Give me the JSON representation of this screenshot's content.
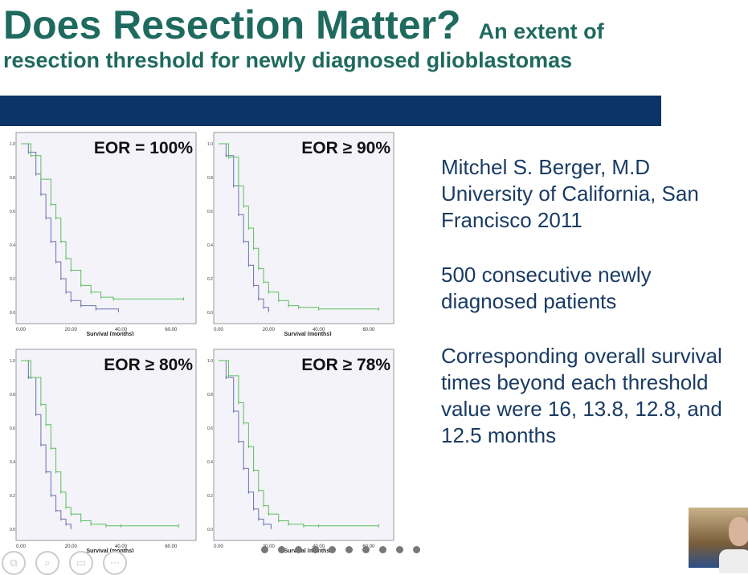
{
  "slide": {
    "title": "Does Resection Matter?",
    "subtitle_line1": "An extent of",
    "subtitle_line2": "resection threshold for newly diagnosed glioblastomas",
    "accent": "#0b3566",
    "title_color": "#1f6a5f"
  },
  "text": {
    "p1": "Mitchel S. Berger, M.D University of California, San Francisco 2011",
    "p2": "500 consecutive newly diagnosed patients",
    "p3": "Corresponding overall survival times beyond each threshold value were 16, 13.8, 12.8, and 12.5 months"
  },
  "toolbar": {
    "icons": [
      "copy-icon",
      "zoom-icon",
      "subtitles-icon",
      "more-icon"
    ]
  },
  "slide_nav": {
    "dot_count": 10
  },
  "chart_data": [
    {
      "type": "line",
      "title": "EOR = 100%",
      "xlabel": "Survival (months)",
      "ylabel": "",
      "xlim": [
        0,
        70
      ],
      "ylim": [
        0,
        1
      ],
      "xticks": [
        "0.00",
        "20.00",
        "40.00",
        "60.00"
      ],
      "yticks": [
        "0.0",
        "0.2",
        "0.4",
        "0.6",
        "0.8",
        "1.0"
      ],
      "series": [
        {
          "color": "#6b72b0",
          "x": [
            0,
            3,
            6,
            8,
            10,
            12,
            14,
            16,
            18,
            20,
            24,
            30,
            39
          ],
          "y": [
            1,
            0.95,
            0.82,
            0.7,
            0.56,
            0.42,
            0.3,
            0.2,
            0.12,
            0.07,
            0.04,
            0.02,
            0.01
          ]
        },
        {
          "color": "#5cbf5c",
          "x": [
            0,
            4,
            8,
            12,
            14,
            16,
            18,
            20,
            24,
            28,
            32,
            37,
            65
          ],
          "y": [
            1,
            0.93,
            0.79,
            0.64,
            0.56,
            0.42,
            0.32,
            0.25,
            0.16,
            0.12,
            0.09,
            0.08,
            0.08
          ]
        }
      ]
    },
    {
      "type": "line",
      "title": "EOR ≥ 90%",
      "xlabel": "Survival (months)",
      "ylabel": "",
      "xlim": [
        0,
        70
      ],
      "ylim": [
        0,
        1
      ],
      "xticks": [
        "0.00",
        "20.00",
        "40.00",
        "60.00"
      ],
      "yticks": [
        "0.0",
        "0.2",
        "0.4",
        "0.6",
        "0.8",
        "1.0"
      ],
      "series": [
        {
          "color": "#6b72b0",
          "x": [
            0,
            3,
            6,
            8,
            10,
            12,
            14,
            16,
            18,
            20
          ],
          "y": [
            1,
            0.93,
            0.75,
            0.58,
            0.42,
            0.28,
            0.16,
            0.08,
            0.03,
            0.01
          ]
        },
        {
          "color": "#5cbf5c",
          "x": [
            0,
            4,
            8,
            10,
            12,
            14,
            16,
            18,
            20,
            24,
            28,
            32,
            40,
            64
          ],
          "y": [
            1,
            0.92,
            0.75,
            0.63,
            0.5,
            0.38,
            0.26,
            0.18,
            0.12,
            0.07,
            0.04,
            0.03,
            0.02,
            0.02
          ]
        }
      ]
    },
    {
      "type": "line",
      "title": "EOR ≥ 80%",
      "xlabel": "Survival (months)",
      "ylabel": "",
      "xlim": [
        0,
        70
      ],
      "ylim": [
        0,
        1
      ],
      "xticks": [
        "0.00",
        "20.00",
        "40.00",
        "60.00"
      ],
      "yticks": [
        "0.0",
        "0.2",
        "0.4",
        "0.6",
        "0.8",
        "1.0"
      ],
      "series": [
        {
          "color": "#6b72b0",
          "x": [
            0,
            3,
            6,
            8,
            10,
            12,
            14,
            16,
            18,
            20
          ],
          "y": [
            1,
            0.9,
            0.68,
            0.5,
            0.34,
            0.2,
            0.11,
            0.06,
            0.03,
            0.01
          ]
        },
        {
          "color": "#5cbf5c",
          "x": [
            0,
            4,
            8,
            10,
            12,
            14,
            16,
            18,
            20,
            24,
            28,
            34,
            40,
            63
          ],
          "y": [
            1,
            0.9,
            0.74,
            0.62,
            0.48,
            0.34,
            0.22,
            0.13,
            0.09,
            0.05,
            0.03,
            0.02,
            0.02,
            0.02
          ]
        }
      ]
    },
    {
      "type": "line",
      "title": "EOR ≥ 78%",
      "xlabel": "Survival (months)",
      "ylabel": "",
      "xlim": [
        0,
        70
      ],
      "ylim": [
        0,
        1
      ],
      "xticks": [
        "0.00",
        "20.00",
        "40.00",
        "60.00"
      ],
      "yticks": [
        "0.0",
        "0.2",
        "0.4",
        "0.6",
        "0.8",
        "1.0"
      ],
      "series": [
        {
          "color": "#6b72b0",
          "x": [
            0,
            3,
            6,
            8,
            10,
            12,
            14,
            16,
            18,
            21
          ],
          "y": [
            1,
            0.9,
            0.7,
            0.52,
            0.36,
            0.22,
            0.12,
            0.06,
            0.03,
            0.01
          ]
        },
        {
          "color": "#5cbf5c",
          "x": [
            0,
            4,
            8,
            10,
            12,
            14,
            16,
            18,
            20,
            24,
            28,
            34,
            40,
            64
          ],
          "y": [
            1,
            0.91,
            0.75,
            0.63,
            0.49,
            0.35,
            0.23,
            0.14,
            0.09,
            0.05,
            0.03,
            0.02,
            0.02,
            0.02
          ]
        }
      ]
    }
  ]
}
